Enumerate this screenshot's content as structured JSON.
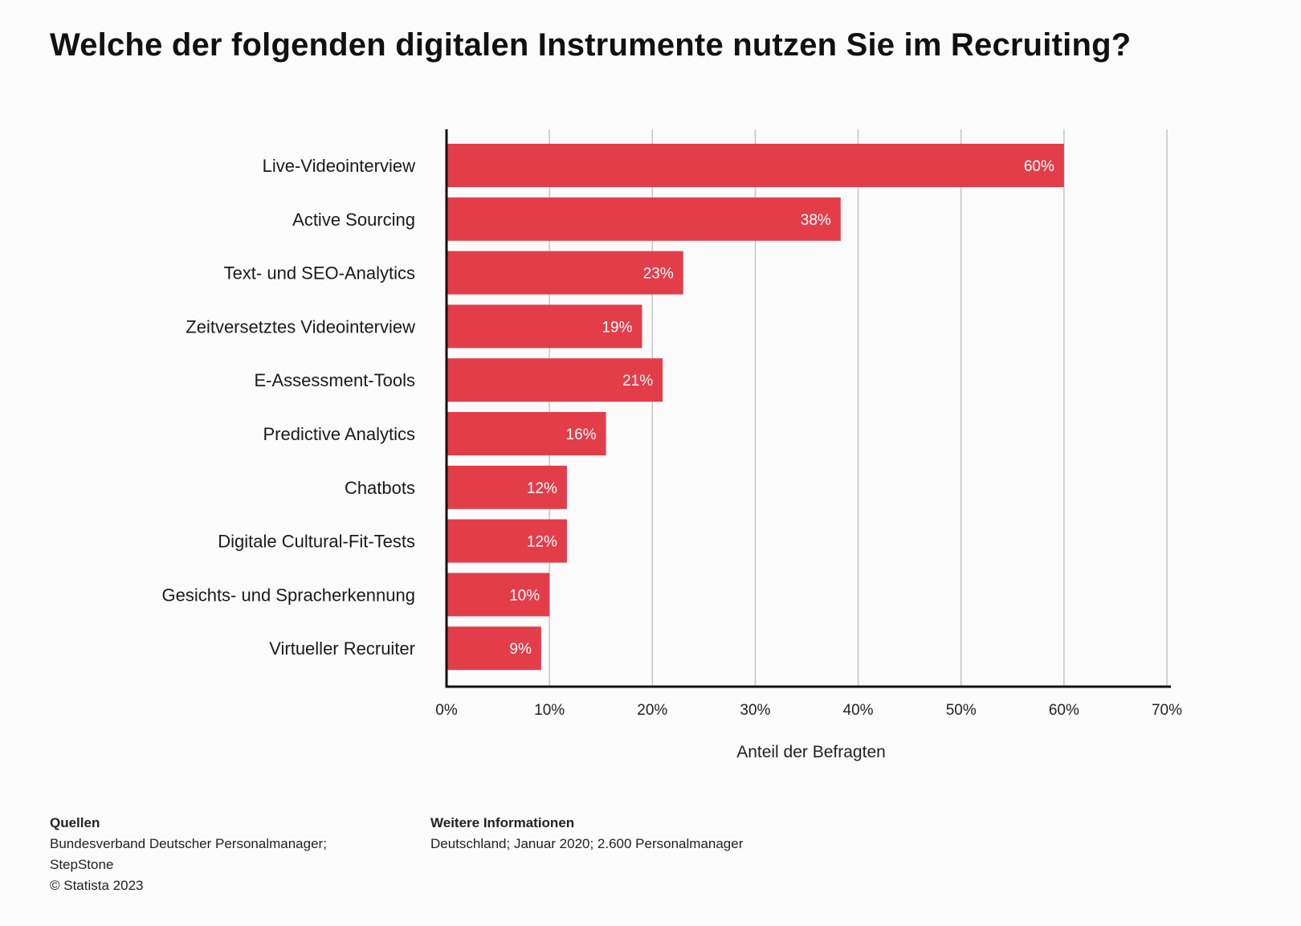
{
  "title": "Welche der folgenden digitalen Instrumente nutzen Sie im Recruiting?",
  "colors": {
    "bar": "#e33d4a",
    "grid": "#c4c4c4",
    "axis": "#111111",
    "bar_label": "#ffffff"
  },
  "chart_data": {
    "type": "bar",
    "orientation": "horizontal",
    "categories": [
      "Live-Videointerview",
      "Active Sourcing",
      "Text- und SEO-Analytics",
      "Zeitversetztes Videointerview",
      "E-Assessment-Tools",
      "Predictive Analytics",
      "Chatbots",
      "Digitale Cultural-Fit-Tests",
      "Gesichts- und Spracherkennung",
      "Virtueller Recruiter"
    ],
    "values": [
      60,
      38.3,
      23,
      19,
      21,
      15.5,
      11.7,
      11.7,
      10,
      9.2
    ],
    "value_labels": [
      "60%",
      "38%",
      "23%",
      "19%",
      "21%",
      "16%",
      "12%",
      "12%",
      "10%",
      "9%"
    ],
    "xlim": [
      0,
      70
    ],
    "x_ticks": [
      "0%",
      "10%",
      "20%",
      "30%",
      "40%",
      "50%",
      "60%",
      "70%"
    ],
    "xlabel": "Anteil der Befragten",
    "ylabel": "",
    "grid": true
  },
  "footer": {
    "sources_heading": "Quellen",
    "sources_lines": [
      "Bundesverband Deutscher Personalmanager;",
      "StepStone",
      "© Statista 2023"
    ],
    "info_heading": "Weitere Informationen",
    "info_lines": [
      "Deutschland; Januar 2020; 2.600 Personalmanager"
    ]
  }
}
